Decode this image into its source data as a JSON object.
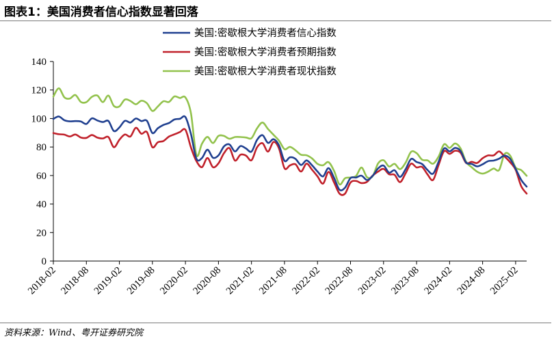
{
  "figure": {
    "title": "图表1：美国消费者信心指数显著回落",
    "source": "资料来源：Wind、粤开证券研究院"
  },
  "chart_data": {
    "type": "line",
    "title": "",
    "xlabel": "",
    "ylabel": "",
    "ylim": [
      0,
      140
    ],
    "yticks": [
      0,
      20,
      40,
      60,
      80,
      100,
      120,
      140
    ],
    "xlim": [
      "2018-02",
      "2025-04"
    ],
    "xticks": [
      "2018-02",
      "2018-08",
      "2019-02",
      "2019-08",
      "2020-02",
      "2020-08",
      "2021-02",
      "2021-08",
      "2022-02",
      "2022-08",
      "2023-02",
      "2023-08",
      "2024-02",
      "2024-08",
      "2025-02"
    ],
    "grid": false,
    "legend_position": "top-center",
    "x": [
      "2018-02",
      "2018-03",
      "2018-04",
      "2018-05",
      "2018-06",
      "2018-07",
      "2018-08",
      "2018-09",
      "2018-10",
      "2018-11",
      "2018-12",
      "2019-01",
      "2019-02",
      "2019-03",
      "2019-04",
      "2019-05",
      "2019-06",
      "2019-07",
      "2019-08",
      "2019-09",
      "2019-10",
      "2019-11",
      "2019-12",
      "2020-01",
      "2020-02",
      "2020-03",
      "2020-04",
      "2020-05",
      "2020-06",
      "2020-07",
      "2020-08",
      "2020-09",
      "2020-10",
      "2020-11",
      "2020-12",
      "2021-01",
      "2021-02",
      "2021-03",
      "2021-04",
      "2021-05",
      "2021-06",
      "2021-07",
      "2021-08",
      "2021-09",
      "2021-10",
      "2021-11",
      "2021-12",
      "2022-01",
      "2022-02",
      "2022-03",
      "2022-04",
      "2022-05",
      "2022-06",
      "2022-07",
      "2022-08",
      "2022-09",
      "2022-10",
      "2022-11",
      "2022-12",
      "2023-01",
      "2023-02",
      "2023-03",
      "2023-04",
      "2023-05",
      "2023-06",
      "2023-07",
      "2023-08",
      "2023-09",
      "2023-10",
      "2023-11",
      "2023-12",
      "2024-01",
      "2024-02",
      "2024-03",
      "2024-04",
      "2024-05",
      "2024-06",
      "2024-07",
      "2024-08",
      "2024-09",
      "2024-10",
      "2024-11",
      "2024-12",
      "2025-01",
      "2025-02",
      "2025-03",
      "2025-04"
    ],
    "series": [
      {
        "name": "美国:密歇根大学消费者信心指数",
        "color": "#1f3f8f",
        "values": [
          99.7,
          101.4,
          98.8,
          98.0,
          98.2,
          97.9,
          96.2,
          100.1,
          98.6,
          97.5,
          98.3,
          91.2,
          93.8,
          98.4,
          97.2,
          100.0,
          98.2,
          98.4,
          89.8,
          93.2,
          95.5,
          96.8,
          99.3,
          99.8,
          101.0,
          89.1,
          71.8,
          72.3,
          78.1,
          72.5,
          74.1,
          80.4,
          81.8,
          76.9,
          80.7,
          79.0,
          76.8,
          84.9,
          88.3,
          82.9,
          85.5,
          81.2,
          70.3,
          72.8,
          71.7,
          67.4,
          70.6,
          67.2,
          62.8,
          59.4,
          65.2,
          58.4,
          50.0,
          51.5,
          58.2,
          58.6,
          59.9,
          56.8,
          59.7,
          64.9,
          67.0,
          62.0,
          63.7,
          59.0,
          64.4,
          71.6,
          69.5,
          68.1,
          63.8,
          61.3,
          69.7,
          79.0,
          76.9,
          79.4,
          77.2,
          69.1,
          68.2,
          66.4,
          67.9,
          70.1,
          70.5,
          71.8,
          74.0,
          71.7,
          64.7,
          57.0,
          52.2
        ]
      },
      {
        "name": "美国:密歇根大学消费者预期指数",
        "color": "#c0202a",
        "values": [
          89.8,
          89.0,
          88.7,
          87.4,
          88.8,
          86.7,
          86.4,
          88.4,
          86.6,
          86.0,
          87.0,
          79.9,
          85.1,
          88.8,
          87.4,
          93.5,
          89.3,
          90.5,
          79.9,
          83.4,
          84.2,
          87.3,
          88.9,
          90.5,
          92.1,
          79.7,
          70.1,
          65.9,
          72.3,
          65.9,
          68.5,
          75.6,
          79.2,
          70.5,
          74.6,
          74.0,
          70.7,
          79.7,
          82.7,
          76.8,
          83.5,
          79.0,
          65.1,
          67.1,
          67.9,
          62.8,
          68.3,
          64.1,
          59.4,
          54.3,
          62.5,
          55.2,
          47.3,
          47.3,
          55.1,
          56.2,
          54.7,
          55.6,
          59.9,
          62.7,
          64.7,
          60.9,
          60.5,
          55.4,
          61.5,
          68.3,
          65.7,
          66.0,
          60.7,
          56.9,
          67.4,
          77.1,
          75.2,
          77.4,
          76.0,
          68.8,
          69.6,
          68.8,
          72.1,
          74.1,
          74.1,
          76.9,
          73.3,
          69.3,
          64.0,
          52.6,
          47.3
        ]
      },
      {
        "name": "美国:密歇根大学消费者现状指数",
        "color": "#92c24c",
        "values": [
          115.4,
          121.2,
          114.9,
          114.0,
          116.5,
          111.6,
          111.5,
          115.2,
          116.1,
          111.5,
          116.1,
          108.8,
          108.5,
          113.3,
          112.3,
          110.0,
          112.5,
          110.7,
          105.3,
          108.5,
          112.1,
          111.6,
          115.5,
          114.4,
          114.8,
          103.7,
          74.3,
          82.3,
          87.1,
          82.8,
          87.8,
          87.8,
          85.8,
          87.0,
          87.0,
          86.7,
          86.2,
          93.0,
          97.2,
          92.7,
          88.6,
          84.5,
          78.5,
          80.1,
          77.7,
          74.6,
          74.2,
          72.0,
          68.2,
          67.2,
          69.4,
          63.3,
          53.8,
          58.1,
          58.6,
          59.7,
          65.6,
          58.8,
          59.4,
          68.4,
          70.7,
          66.3,
          68.2,
          64.5,
          69.0,
          76.6,
          75.7,
          71.1,
          70.6,
          68.3,
          73.3,
          81.9,
          79.4,
          82.5,
          79.0,
          69.6,
          65.9,
          62.7,
          61.3,
          62.7,
          64.9,
          63.9,
          75.1,
          74.0,
          65.7,
          63.8,
          59.8
        ]
      }
    ]
  }
}
